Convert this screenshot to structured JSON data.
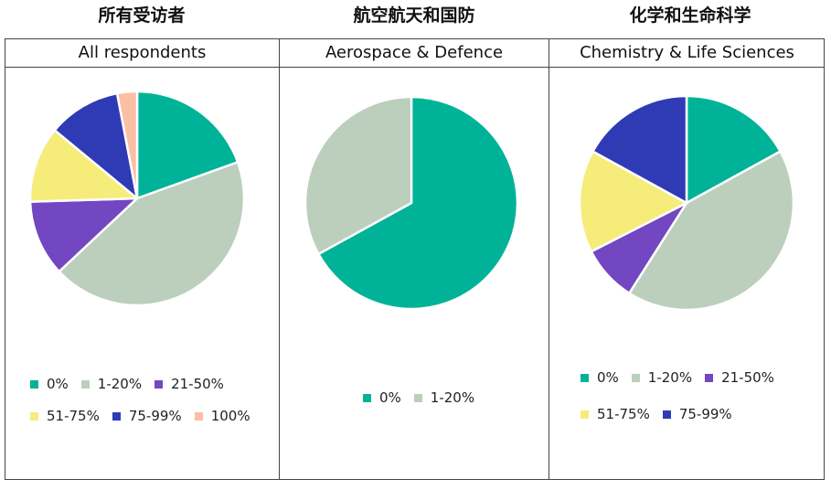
{
  "titles": [
    "所有受访者",
    "航空航天和国防",
    "化学和生命科学"
  ],
  "colors": {
    "0%": "#00b398",
    "1-20%": "#bbcfbc",
    "21-50%": "#7346c2",
    "51-75%": "#f6ec7a",
    "75-99%": "#2e3bb5",
    "100%": "#fbbfa5"
  },
  "chart_data": [
    {
      "type": "pie",
      "title": "All respondents",
      "labels": [
        "0%",
        "1-20%",
        "21-50%",
        "51-75%",
        "75-99%",
        "100%"
      ],
      "values": [
        19.5,
        43.5,
        11.5,
        11.5,
        11,
        3
      ]
    },
    {
      "type": "pie",
      "title": "Aerospace & Defence",
      "labels": [
        "0%",
        "1-20%"
      ],
      "values": [
        67,
        33
      ]
    },
    {
      "type": "pie",
      "title": "Chemistry & Life Sciences",
      "labels": [
        "0%",
        "1-20%",
        "21-50%",
        "51-75%",
        "75-99%"
      ],
      "values": [
        17,
        42,
        8.5,
        15.5,
        17
      ]
    }
  ]
}
